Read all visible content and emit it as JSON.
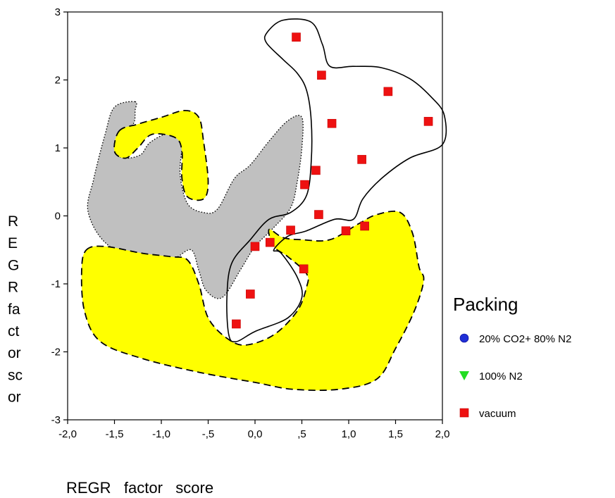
{
  "chart_data": {
    "type": "scatter",
    "xlabel": "REGR   factor   score",
    "ylabel": "REGR factor score",
    "xlim": [
      -2.0,
      2.0
    ],
    "ylim": [
      -3,
      3
    ],
    "x_ticks": [
      -2.0,
      -1.5,
      -1.0,
      -0.5,
      0.0,
      0.5,
      1.0,
      1.5,
      2.0
    ],
    "x_tick_labels": [
      "-2,0",
      "-1,5",
      "-1,0",
      "-,5",
      "0,0",
      ",5",
      "1,0",
      "1,5",
      "2,0"
    ],
    "y_ticks": [
      3,
      2,
      1,
      0,
      -1,
      -2,
      -3
    ],
    "y_tick_labels": [
      "3",
      "2",
      "1",
      "0",
      "-1",
      "-2",
      "-3"
    ],
    "ylabel_lines": [
      "R",
      "E",
      "G",
      "R",
      "fa",
      "ct",
      "or",
      "sc",
      "or"
    ],
    "grid": false,
    "legend": {
      "title": "Packing",
      "placement": "right",
      "items": [
        {
          "label": "20% CO2+ 80% N2",
          "color": "#1f2fd6",
          "marker": "circle"
        },
        {
          "label": "100% N2",
          "color": "#22dd22",
          "marker": "triangle-down"
        },
        {
          "label": "vacuum",
          "color": "#ee1111",
          "marker": "square"
        }
      ]
    },
    "series": [
      {
        "name": "20% CO2+ 80% N2",
        "x": [],
        "y": []
      },
      {
        "name": "100% N2",
        "x": [],
        "y": []
      },
      {
        "name": "vacuum",
        "x": [
          0.44,
          0.71,
          1.42,
          0.82,
          1.85,
          1.14,
          0.65,
          0.53,
          0.68,
          0.38,
          0.97,
          1.17,
          0.16,
          0.0,
          0.52,
          -0.05,
          -0.2
        ],
        "y": [
          2.63,
          2.07,
          1.83,
          1.36,
          1.39,
          0.83,
          0.67,
          0.46,
          0.02,
          -0.21,
          -0.22,
          -0.15,
          -0.39,
          -0.45,
          -0.78,
          -1.15,
          -1.59
        ]
      }
    ],
    "regions": [
      {
        "fill": "#c0c0c0",
        "stroke": "dotted",
        "points": [
          [
            -1.28,
            1.68
          ],
          [
            -1.5,
            1.6
          ],
          [
            -1.6,
            1.2
          ],
          [
            -1.72,
            0.55
          ],
          [
            -1.78,
            0.05
          ],
          [
            -1.55,
            -0.45
          ],
          [
            -1.05,
            -0.7
          ],
          [
            -0.85,
            -0.62
          ],
          [
            -0.68,
            -0.5
          ],
          [
            -0.6,
            -0.8
          ],
          [
            -0.52,
            -1.1
          ],
          [
            -0.35,
            -1.2
          ],
          [
            -0.15,
            -0.78
          ],
          [
            0.0,
            -0.45
          ],
          [
            0.18,
            -0.2
          ],
          [
            0.38,
            0.12
          ],
          [
            0.45,
            0.5
          ],
          [
            0.5,
            1.0
          ],
          [
            0.5,
            1.45
          ],
          [
            0.35,
            1.4
          ],
          [
            0.15,
            1.1
          ],
          [
            -0.05,
            0.75
          ],
          [
            -0.22,
            0.55
          ],
          [
            -0.4,
            0.1
          ],
          [
            -0.55,
            0.05
          ],
          [
            -0.72,
            0.18
          ],
          [
            -0.8,
            0.62
          ],
          [
            -0.78,
            1.15
          ],
          [
            -0.92,
            1.22
          ],
          [
            -1.12,
            1.08
          ],
          [
            -1.22,
            0.9
          ],
          [
            -1.38,
            0.85
          ],
          [
            -1.48,
            0.92
          ],
          [
            -1.45,
            1.15
          ],
          [
            -1.3,
            1.35
          ],
          [
            -1.28,
            1.55
          ]
        ]
      },
      {
        "fill": "#ffff00",
        "stroke": "dashed",
        "points": [
          [
            -1.45,
            1.25
          ],
          [
            -1.25,
            1.35
          ],
          [
            -1.0,
            1.45
          ],
          [
            -0.75,
            1.55
          ],
          [
            -0.6,
            1.45
          ],
          [
            -0.55,
            1.1
          ],
          [
            -0.5,
            0.5
          ],
          [
            -0.55,
            0.25
          ],
          [
            -0.72,
            0.28
          ],
          [
            -0.78,
            0.55
          ],
          [
            -0.78,
            0.95
          ],
          [
            -0.85,
            1.15
          ],
          [
            -1.1,
            1.2
          ],
          [
            -1.25,
            1.0
          ],
          [
            -1.38,
            0.85
          ],
          [
            -1.5,
            0.95
          ]
        ]
      },
      {
        "fill": "#ffff00",
        "stroke": "dashed",
        "points": [
          [
            -1.8,
            -0.5
          ],
          [
            -1.6,
            -0.45
          ],
          [
            -1.2,
            -0.55
          ],
          [
            -0.9,
            -0.6
          ],
          [
            -0.72,
            -0.65
          ],
          [
            -0.6,
            -1.0
          ],
          [
            -0.5,
            -1.5
          ],
          [
            -0.3,
            -1.8
          ],
          [
            -0.1,
            -1.9
          ],
          [
            0.2,
            -1.75
          ],
          [
            0.45,
            -1.4
          ],
          [
            0.55,
            -1.05
          ],
          [
            0.55,
            -0.85
          ],
          [
            0.35,
            -0.6
          ],
          [
            0.2,
            -0.45
          ],
          [
            0.15,
            -0.2
          ],
          [
            0.3,
            -0.32
          ],
          [
            0.5,
            -0.35
          ],
          [
            0.8,
            -0.35
          ],
          [
            1.1,
            -0.12
          ],
          [
            1.3,
            0.02
          ],
          [
            1.55,
            0.05
          ],
          [
            1.68,
            -0.25
          ],
          [
            1.75,
            -0.75
          ],
          [
            1.8,
            -0.95
          ],
          [
            1.7,
            -1.4
          ],
          [
            1.5,
            -1.95
          ],
          [
            1.3,
            -2.4
          ],
          [
            0.9,
            -2.55
          ],
          [
            0.4,
            -2.55
          ],
          [
            0.0,
            -2.45
          ],
          [
            -0.6,
            -2.3
          ],
          [
            -1.2,
            -2.1
          ],
          [
            -1.65,
            -1.85
          ],
          [
            -1.82,
            -1.4
          ],
          [
            -1.85,
            -0.8
          ]
        ]
      }
    ],
    "outline": {
      "stroke": "solid",
      "points": [
        [
          0.13,
          2.7
        ],
        [
          0.3,
          2.88
        ],
        [
          0.6,
          2.85
        ],
        [
          0.72,
          2.52
        ],
        [
          0.8,
          2.2
        ],
        [
          1.05,
          2.2
        ],
        [
          1.35,
          2.18
        ],
        [
          1.65,
          2.02
        ],
        [
          1.88,
          1.75
        ],
        [
          2.02,
          1.48
        ],
        [
          2.0,
          1.05
        ],
        [
          1.65,
          0.85
        ],
        [
          1.35,
          0.55
        ],
        [
          1.15,
          0.25
        ],
        [
          1.05,
          -0.05
        ],
        [
          0.85,
          -0.05
        ],
        [
          0.55,
          -0.22
        ],
        [
          0.35,
          -0.3
        ],
        [
          0.2,
          -0.5
        ],
        [
          0.28,
          -0.55
        ],
        [
          0.45,
          -0.9
        ],
        [
          0.5,
          -1.2
        ],
        [
          0.35,
          -1.5
        ],
        [
          0.0,
          -1.7
        ],
        [
          -0.2,
          -1.85
        ],
        [
          -0.28,
          -1.75
        ],
        [
          -0.3,
          -1.2
        ],
        [
          -0.25,
          -0.7
        ],
        [
          -0.05,
          -0.35
        ],
        [
          0.15,
          -0.05
        ],
        [
          0.38,
          0.05
        ],
        [
          0.55,
          0.3
        ],
        [
          0.6,
          0.8
        ],
        [
          0.6,
          1.4
        ],
        [
          0.55,
          1.85
        ],
        [
          0.45,
          2.1
        ],
        [
          0.3,
          2.3
        ],
        [
          0.12,
          2.55
        ]
      ]
    }
  }
}
